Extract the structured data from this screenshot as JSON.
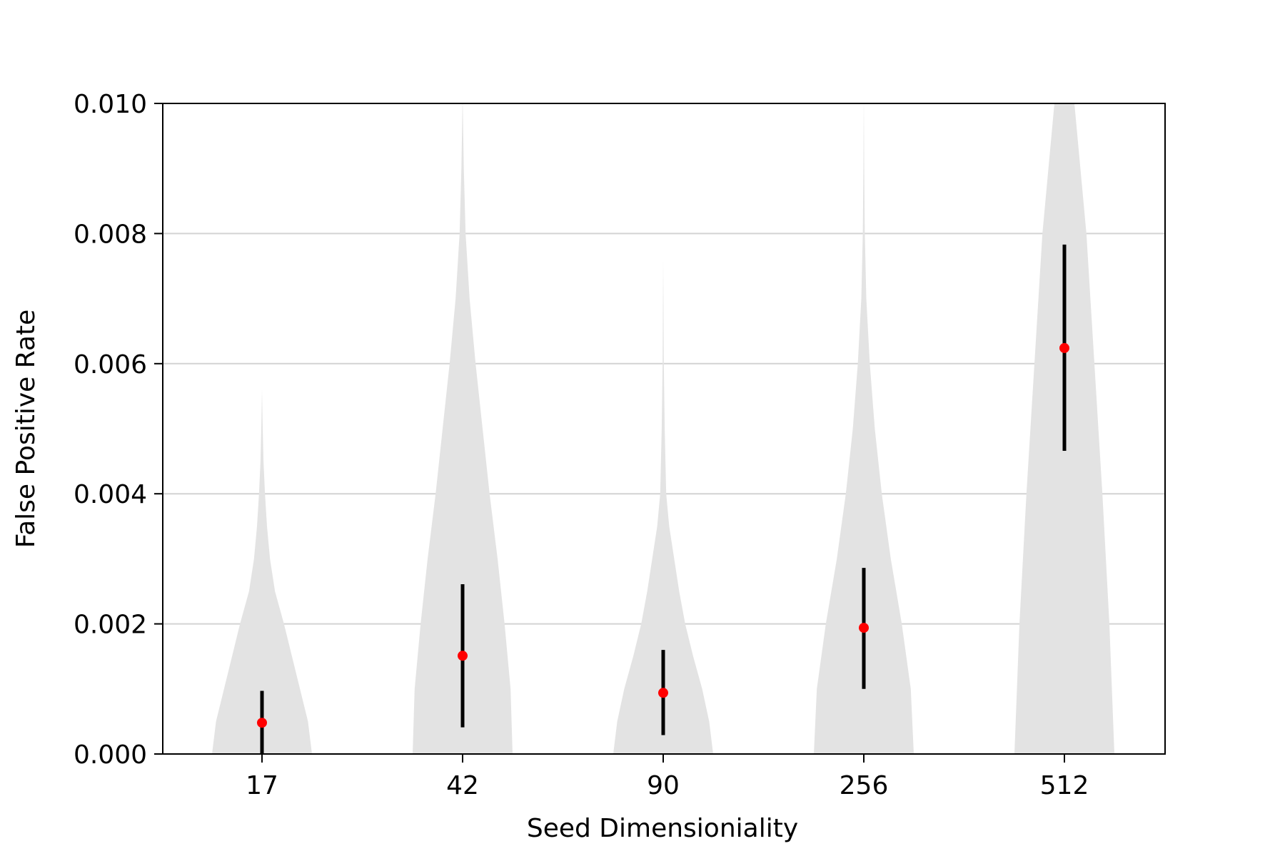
{
  "chart_data": {
    "type": "violin",
    "xlabel": "Seed Dimensioniality",
    "ylabel": "False Positive Rate",
    "categories": [
      "17",
      "42",
      "90",
      "256",
      "512"
    ],
    "ylim": [
      0,
      0.01
    ],
    "yticks": [
      "0.000",
      "0.002",
      "0.004",
      "0.006",
      "0.008",
      "0.010"
    ],
    "ytick_values": [
      0,
      0.002,
      0.004,
      0.006,
      0.008,
      0.01
    ],
    "grid": "horizontal",
    "colors": {
      "violin": "#e3e3e3",
      "marker": "#ff0000",
      "errorbar": "#000000",
      "grid": "#d3d3d3",
      "axes": "#000000"
    },
    "series": [
      {
        "category": "17",
        "mean": 0.00048,
        "err_low": 0.0,
        "err_high": 0.00097,
        "violin": {
          "max": 0.0056,
          "y": [
            0,
            0.0005,
            0.001,
            0.0015,
            0.002,
            0.0025,
            0.003,
            0.0035,
            0.004,
            0.0045,
            0.005,
            0.0056
          ],
          "half_width": [
            0.5,
            0.46,
            0.38,
            0.3,
            0.22,
            0.13,
            0.08,
            0.05,
            0.03,
            0.015,
            0.007,
            0.0
          ]
        }
      },
      {
        "category": "42",
        "mean": 0.00151,
        "err_low": 0.00041,
        "err_high": 0.00261,
        "violin": {
          "max": 0.0101,
          "y": [
            0,
            0.001,
            0.002,
            0.003,
            0.004,
            0.005,
            0.006,
            0.007,
            0.008,
            0.009,
            0.0101
          ],
          "half_width": [
            0.5,
            0.48,
            0.42,
            0.35,
            0.27,
            0.2,
            0.13,
            0.07,
            0.03,
            0.012,
            0.0
          ]
        }
      },
      {
        "category": "90",
        "mean": 0.00094,
        "err_low": 0.00029,
        "err_high": 0.0016,
        "violin": {
          "max": 0.0076,
          "y": [
            0,
            0.0005,
            0.001,
            0.0015,
            0.002,
            0.0025,
            0.003,
            0.0035,
            0.004,
            0.005,
            0.006,
            0.0076
          ],
          "half_width": [
            0.5,
            0.46,
            0.39,
            0.3,
            0.22,
            0.16,
            0.11,
            0.06,
            0.03,
            0.015,
            0.006,
            0.0
          ]
        }
      },
      {
        "category": "256",
        "mean": 0.00194,
        "err_low": 0.001,
        "err_high": 0.00286,
        "violin": {
          "max": 0.0101,
          "y": [
            0,
            0.001,
            0.002,
            0.003,
            0.004,
            0.005,
            0.006,
            0.007,
            0.008,
            0.009,
            0.0101
          ],
          "half_width": [
            0.5,
            0.47,
            0.38,
            0.27,
            0.18,
            0.11,
            0.06,
            0.025,
            0.01,
            0.004,
            0.0
          ]
        }
      },
      {
        "category": "512",
        "mean": 0.00624,
        "err_low": 0.00466,
        "err_high": 0.00783,
        "violin": {
          "max": 0.0105,
          "y": [
            0,
            0.002,
            0.004,
            0.006,
            0.008,
            0.009,
            0.01,
            0.0105
          ],
          "half_width": [
            0.5,
            0.45,
            0.38,
            0.3,
            0.22,
            0.16,
            0.1,
            0.08
          ]
        }
      }
    ]
  }
}
